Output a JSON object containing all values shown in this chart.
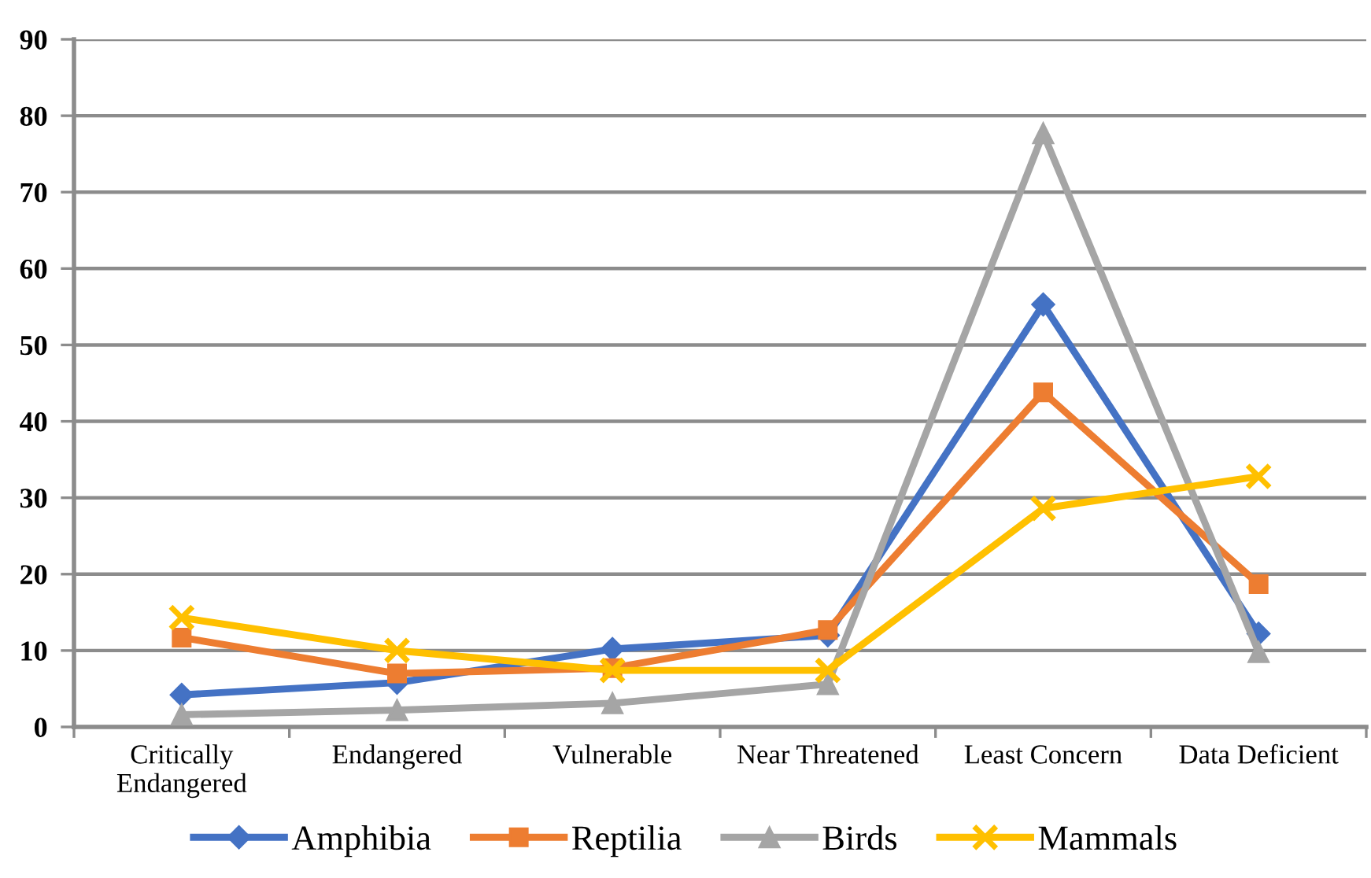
{
  "chart_data": {
    "type": "line",
    "categories": [
      "Critically\nEndangered",
      "Endangered",
      "Vulnerable",
      "Near Threatened",
      "Least Concern",
      "Data Deficient"
    ],
    "series": [
      {
        "name": "Amphibia",
        "color": "#4472c4",
        "marker": "diamond",
        "values": [
          4.2,
          5.8,
          10.2,
          12.0,
          55.3,
          12.2
        ]
      },
      {
        "name": "Reptilia",
        "color": "#ed7d31",
        "marker": "square",
        "values": [
          11.7,
          7.0,
          7.7,
          12.7,
          43.8,
          18.7
        ]
      },
      {
        "name": "Birds",
        "color": "#a5a5a5",
        "marker": "triangle",
        "values": [
          1.6,
          2.2,
          3.1,
          5.6,
          77.7,
          9.8
        ]
      },
      {
        "name": "Mammals",
        "color": "#ffc000",
        "marker": "cross",
        "values": [
          14.3,
          10.0,
          7.4,
          7.4,
          28.6,
          32.8
        ]
      }
    ],
    "ylim": [
      0,
      90
    ],
    "yticks": [
      0,
      10,
      20,
      30,
      40,
      50,
      60,
      70,
      80,
      90
    ],
    "grid": "y",
    "legend": "bottom",
    "line_style": "solid"
  }
}
